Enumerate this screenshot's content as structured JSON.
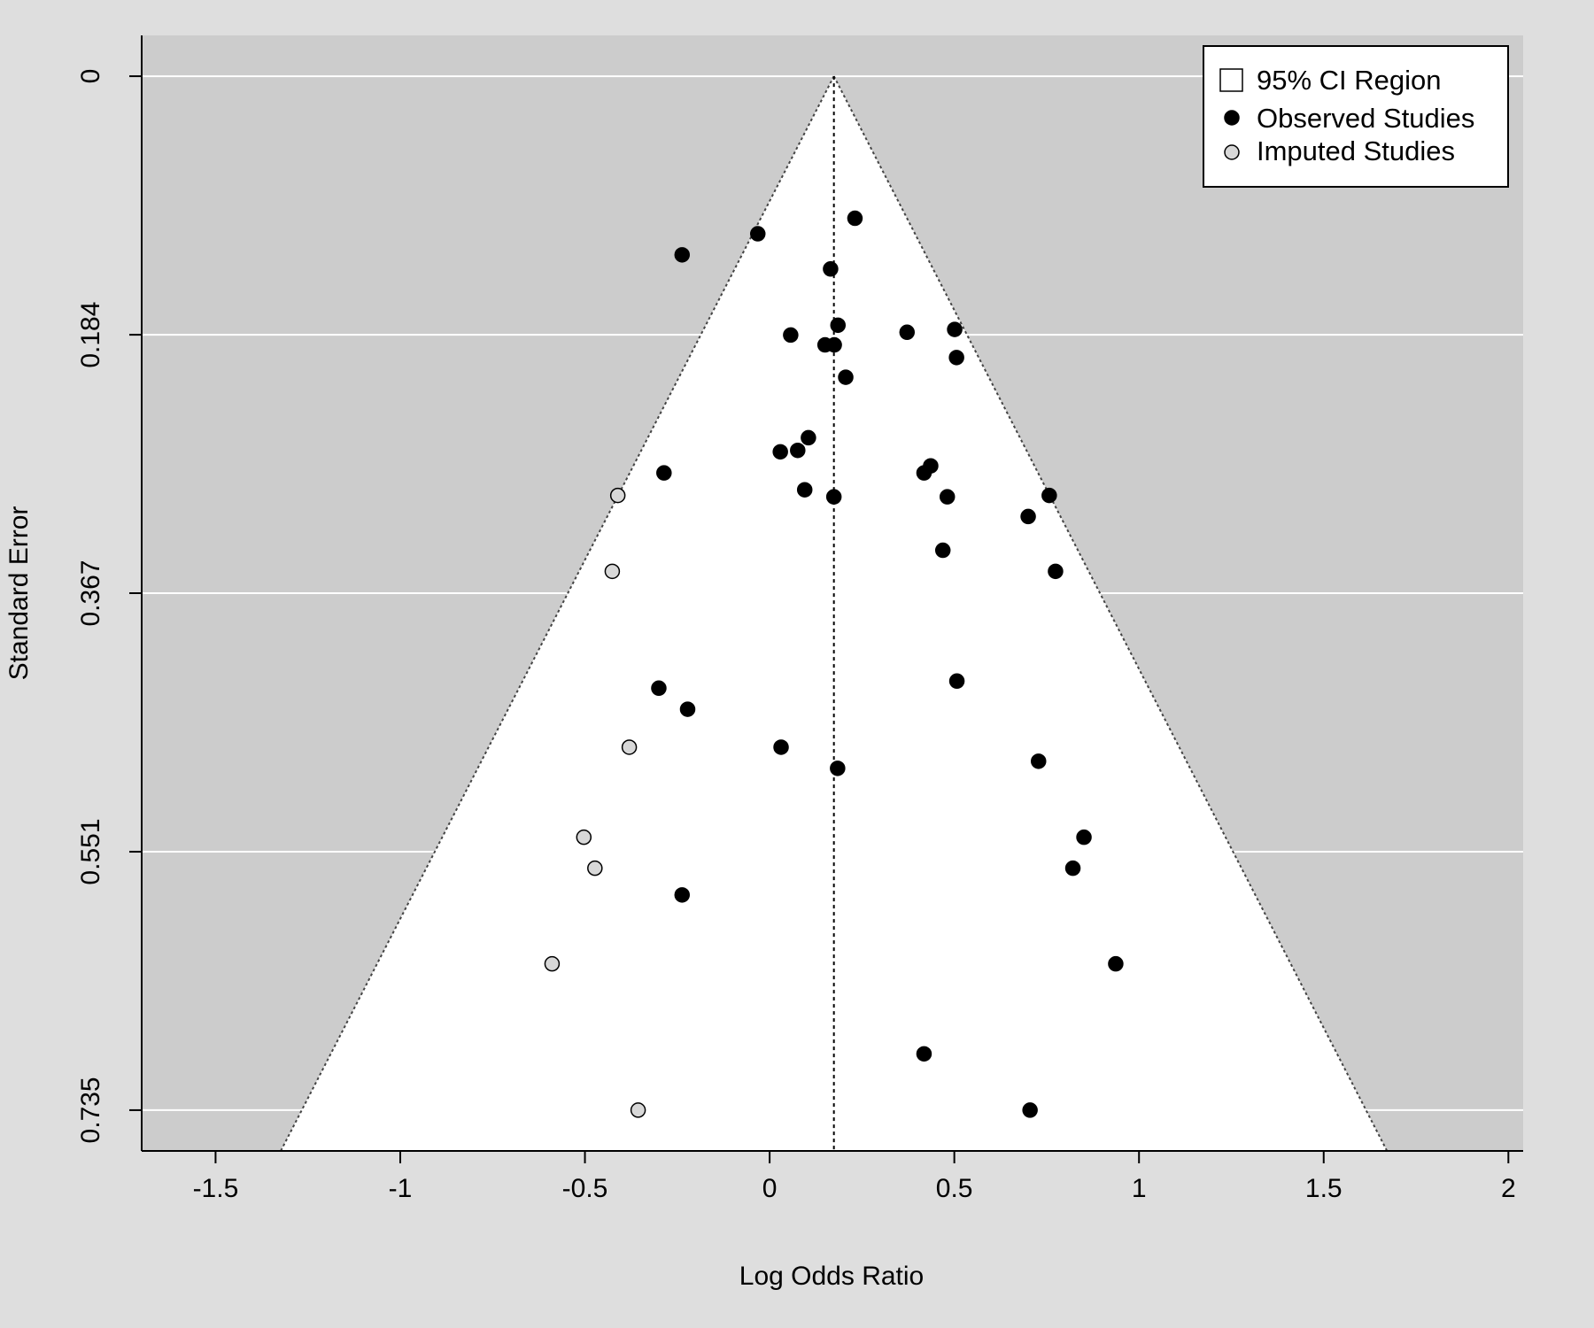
{
  "chart_data": {
    "type": "scatter",
    "title": "",
    "xlabel": "Log Odds Ratio",
    "ylabel": "Standard Error",
    "xlim": [
      -1.7,
      2.04
    ],
    "ylim": [
      0.764,
      -0.029
    ],
    "y_reversed": true,
    "x_ticks": [
      {
        "value": -1.5,
        "label": "-1.5"
      },
      {
        "value": -1.0,
        "label": "-1"
      },
      {
        "value": -0.5,
        "label": "-0.5"
      },
      {
        "value": 0.0,
        "label": "0"
      },
      {
        "value": 0.5,
        "label": "0.5"
      },
      {
        "value": 1.0,
        "label": "1"
      },
      {
        "value": 1.5,
        "label": "1.5"
      },
      {
        "value": 2.0,
        "label": "2"
      }
    ],
    "y_ticks": [
      {
        "value": 0.0,
        "label": "0"
      },
      {
        "value": 0.1838,
        "label": "0.184"
      },
      {
        "value": 0.3675,
        "label": "0.367"
      },
      {
        "value": 0.5513,
        "label": "0.551"
      },
      {
        "value": 0.735,
        "label": "0.735"
      }
    ],
    "grid": true,
    "pooled_estimate": 0.174,
    "ci_multiplier": 1.96,
    "legend_position": "top-right",
    "legend": [
      {
        "label": "95% CI Region",
        "marker": "square-open"
      },
      {
        "label": "Observed Studies",
        "marker": "filled-black"
      },
      {
        "label": "Imputed Studies",
        "marker": "filled-grey"
      }
    ],
    "colors": {
      "background": "#dedede",
      "plot_region": "#cccccc",
      "funnel": "#ffffff",
      "gridline": "#ffffff",
      "observed": "#000000",
      "imputed": "#d8d8d8"
    },
    "series": [
      {
        "name": "Observed Studies",
        "points": [
          {
            "x": 0.231,
            "y": 0.101
          },
          {
            "x": -0.032,
            "y": 0.112
          },
          {
            "x": -0.237,
            "y": 0.127
          },
          {
            "x": 0.165,
            "y": 0.137
          },
          {
            "x": 0.185,
            "y": 0.177
          },
          {
            "x": 0.057,
            "y": 0.184
          },
          {
            "x": 0.372,
            "y": 0.182
          },
          {
            "x": 0.501,
            "y": 0.18
          },
          {
            "x": 0.15,
            "y": 0.191
          },
          {
            "x": 0.175,
            "y": 0.191
          },
          {
            "x": 0.506,
            "y": 0.2
          },
          {
            "x": 0.206,
            "y": 0.214
          },
          {
            "x": 0.105,
            "y": 0.257
          },
          {
            "x": 0.029,
            "y": 0.267
          },
          {
            "x": 0.076,
            "y": 0.266
          },
          {
            "x": -0.286,
            "y": 0.282
          },
          {
            "x": 0.436,
            "y": 0.277
          },
          {
            "x": 0.418,
            "y": 0.282
          },
          {
            "x": 0.095,
            "y": 0.294
          },
          {
            "x": 0.174,
            "y": 0.299
          },
          {
            "x": 0.481,
            "y": 0.299
          },
          {
            "x": 0.757,
            "y": 0.298
          },
          {
            "x": 0.7,
            "y": 0.313
          },
          {
            "x": 0.469,
            "y": 0.337
          },
          {
            "x": 0.774,
            "y": 0.352
          },
          {
            "x": 0.507,
            "y": 0.43
          },
          {
            "x": -0.3,
            "y": 0.435
          },
          {
            "x": -0.222,
            "y": 0.45
          },
          {
            "x": 0.031,
            "y": 0.477
          },
          {
            "x": 0.184,
            "y": 0.492
          },
          {
            "x": 0.728,
            "y": 0.487
          },
          {
            "x": 0.851,
            "y": 0.541
          },
          {
            "x": 0.821,
            "y": 0.563
          },
          {
            "x": -0.237,
            "y": 0.582
          },
          {
            "x": 0.937,
            "y": 0.631
          },
          {
            "x": 0.418,
            "y": 0.695
          },
          {
            "x": 0.705,
            "y": 0.735
          }
        ]
      },
      {
        "name": "Imputed Studies",
        "points": [
          {
            "x": -0.411,
            "y": 0.298
          },
          {
            "x": -0.426,
            "y": 0.352
          },
          {
            "x": -0.38,
            "y": 0.477
          },
          {
            "x": -0.503,
            "y": 0.541
          },
          {
            "x": -0.473,
            "y": 0.563
          },
          {
            "x": -0.589,
            "y": 0.631
          },
          {
            "x": -0.356,
            "y": 0.735
          }
        ]
      }
    ]
  }
}
